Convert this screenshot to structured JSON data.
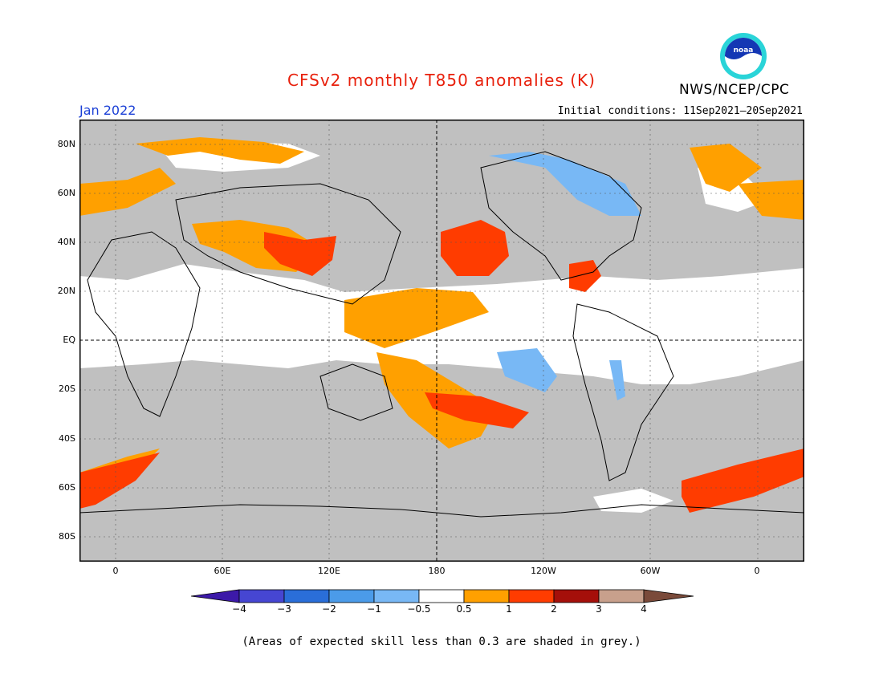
{
  "header": {
    "title": "CFSv2 monthly T850 anomalies (K)",
    "org": "NWS/NCEP/CPC",
    "logo_text": "noaa",
    "month": "Jan 2022",
    "initial_conditions": "Initial conditions: 11Sep2021–20Sep2021"
  },
  "map": {
    "lat_labels": [
      "80N",
      "60N",
      "40N",
      "20N",
      "EQ",
      "20S",
      "40S",
      "60S",
      "80S"
    ],
    "lon_labels": [
      "0",
      "60E",
      "120E",
      "180",
      "120W",
      "60W",
      "0"
    ],
    "skill_shade_color": "#c0c0c0",
    "background_color": "#ffffff"
  },
  "colorbar": {
    "labels": [
      "−4",
      "−3",
      "−2",
      "−1",
      "−0.5",
      "0.5",
      "1",
      "2",
      "3",
      "4"
    ],
    "colors": [
      "#3c19a8",
      "#4646d2",
      "#2a6ed9",
      "#4b9be9",
      "#78b8f5",
      "#ffffff",
      "#ffa000",
      "#ff3c00",
      "#a50f0a",
      "#c8a08c",
      "#7a4a3a"
    ]
  },
  "note": "(Areas of expected skill less than 0.3 are shaded in grey.)"
}
